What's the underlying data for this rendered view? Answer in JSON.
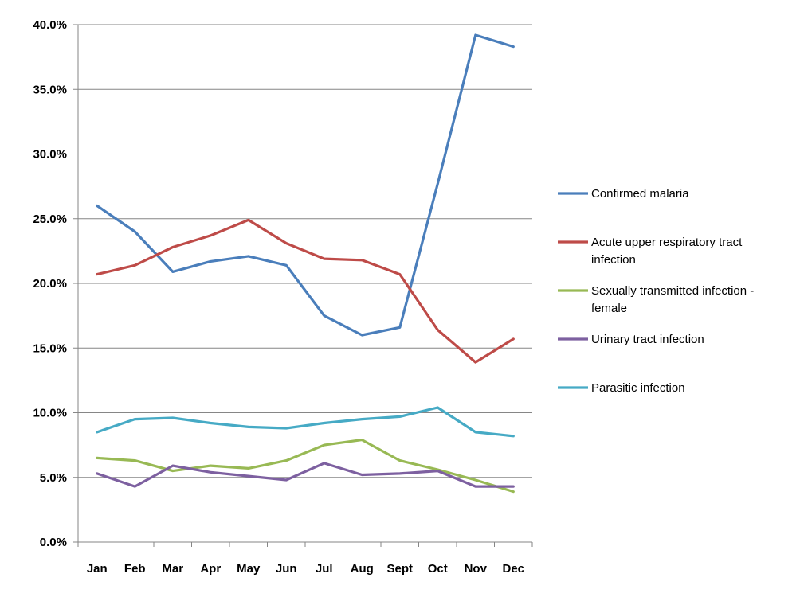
{
  "chart_data": {
    "type": "line",
    "title": "",
    "xlabel": "",
    "ylabel": "",
    "ylim": [
      0,
      0.4
    ],
    "yticks": [
      0,
      0.05,
      0.1,
      0.15,
      0.2,
      0.25,
      0.3,
      0.35,
      0.4
    ],
    "ytick_labels": [
      "0.0%",
      "5.0%",
      "10.0%",
      "15.0%",
      "20.0%",
      "25.0%",
      "30.0%",
      "35.0%",
      "40.0%"
    ],
    "grid": "horizontal",
    "legend_position": "right",
    "categories": [
      "Jan",
      "Feb",
      "Mar",
      "Apr",
      "May",
      "Jun",
      "Jul",
      "Aug",
      "Sept",
      "Oct",
      "Nov",
      "Dec"
    ],
    "series": [
      {
        "name": "Confirmed malaria",
        "legend_lines": [
          "Confirmed malaria"
        ],
        "color": "#4a7ebb",
        "values": [
          0.26,
          0.24,
          0.209,
          0.217,
          0.221,
          0.214,
          0.175,
          0.16,
          0.166,
          0.277,
          0.392,
          0.383
        ]
      },
      {
        "name": "Acute upper respiratory tract infection",
        "legend_lines": [
          "Acute upper respiratory tract",
          "infection"
        ],
        "color": "#be4b48",
        "values": [
          0.207,
          0.214,
          0.228,
          0.237,
          0.249,
          0.231,
          0.219,
          0.218,
          0.207,
          0.164,
          0.139,
          0.157
        ]
      },
      {
        "name": "Sexually transmitted infection - female",
        "legend_lines": [
          "Sexually transmitted infection -",
          "female"
        ],
        "color": "#98b954",
        "values": [
          0.065,
          0.063,
          0.055,
          0.059,
          0.057,
          0.063,
          0.075,
          0.079,
          0.063,
          0.056,
          0.048,
          0.039
        ]
      },
      {
        "name": "Urinary tract infection",
        "legend_lines": [
          "Urinary tract infection"
        ],
        "color": "#7d60a0",
        "values": [
          0.053,
          0.043,
          0.059,
          0.054,
          0.051,
          0.048,
          0.061,
          0.052,
          0.053,
          0.055,
          0.043,
          0.043
        ]
      },
      {
        "name": "Parasitic infection",
        "legend_lines": [
          "Parasitic infection"
        ],
        "color": "#46aac5",
        "values": [
          0.085,
          0.095,
          0.096,
          0.092,
          0.089,
          0.088,
          0.092,
          0.095,
          0.097,
          0.104,
          0.085,
          0.082
        ]
      }
    ]
  }
}
